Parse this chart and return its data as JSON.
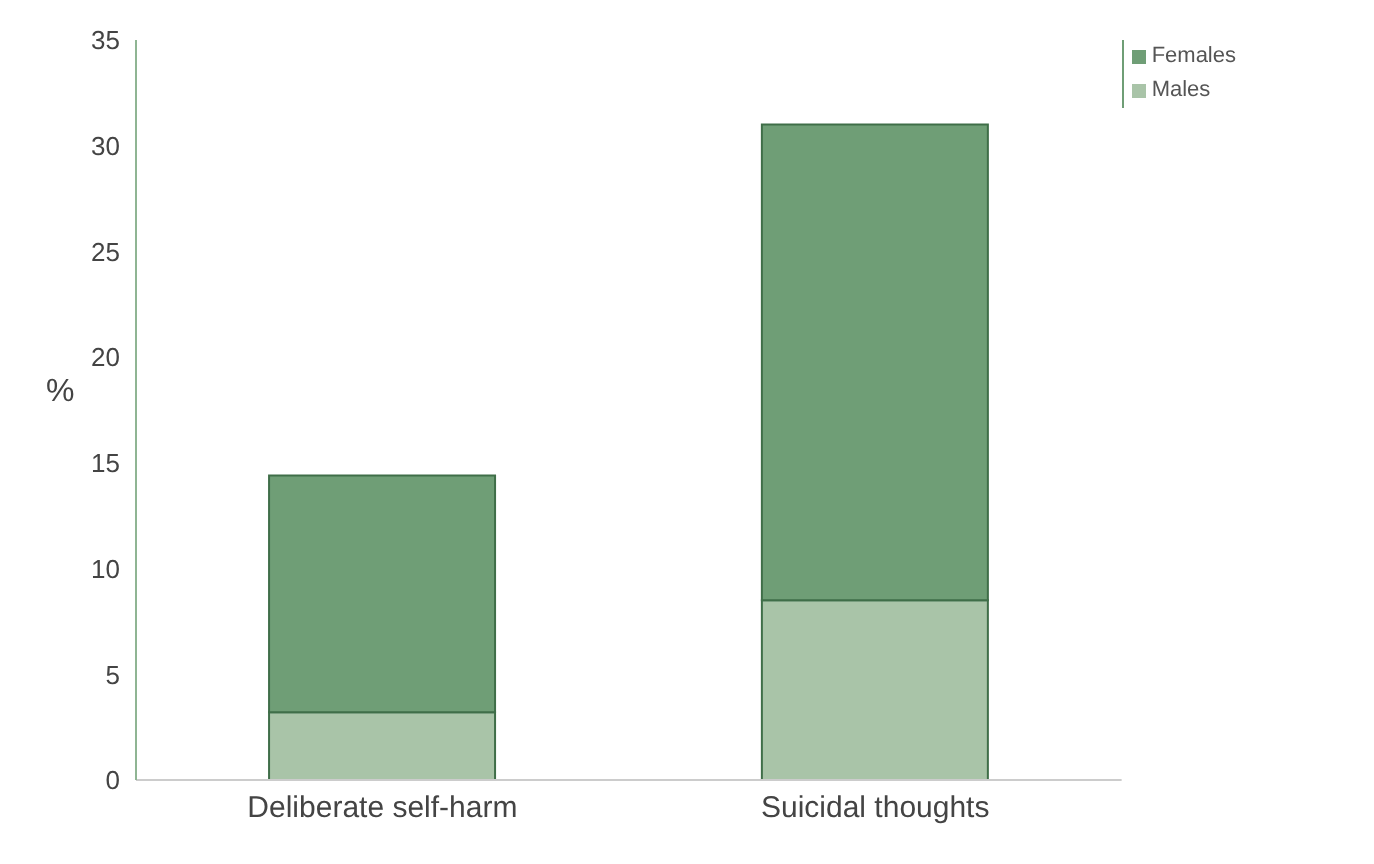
{
  "chart_data": {
    "type": "bar",
    "stacked": true,
    "ylabel": "%",
    "categories": [
      "Deliberate self-harm",
      "Suicidal thoughts"
    ],
    "series": [
      {
        "name": "Males",
        "color": "#a9c4a8",
        "values": [
          3.2,
          8.5
        ]
      },
      {
        "name": "Females",
        "color": "#6f9e76",
        "values": [
          11.2,
          22.5
        ]
      }
    ],
    "ylim": [
      0,
      35
    ],
    "yticks": [
      0,
      5,
      10,
      15,
      20,
      25,
      30,
      35
    ],
    "grid": false,
    "legend": "top right"
  }
}
